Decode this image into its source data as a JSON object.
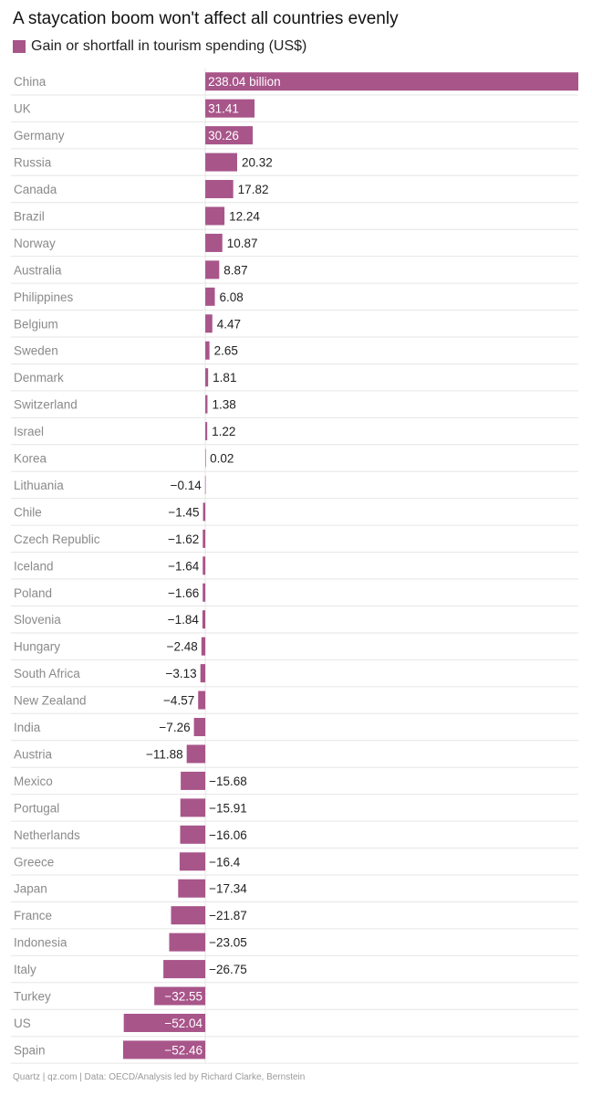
{
  "colors": {
    "bar": "#a8558a",
    "label_inside": "#ffffff",
    "label_outside": "#222222",
    "category_text": "#8a8a8a",
    "grid": "#e6e6e6"
  },
  "chart_data": {
    "type": "bar",
    "orientation": "horizontal",
    "title": "A staycation boom won't affect all countries evenly",
    "legend": "Gain or shortfall in tourism spending (US$)",
    "unit_suffix_first": " billion",
    "xlim": [
      -60,
      238.04
    ],
    "categories": [
      "China",
      "UK",
      "Germany",
      "Russia",
      "Canada",
      "Brazil",
      "Norway",
      "Australia",
      "Philippines",
      "Belgium",
      "Sweden",
      "Denmark",
      "Switzerland",
      "Israel",
      "Korea",
      "Lithuania",
      "Chile",
      "Czech Republic",
      "Iceland",
      "Poland",
      "Slovenia",
      "Hungary",
      "South Africa",
      "New Zealand",
      "India",
      "Austria",
      "Mexico",
      "Portugal",
      "Netherlands",
      "Greece",
      "Japan",
      "France",
      "Indonesia",
      "Italy",
      "Turkey",
      "US",
      "Spain"
    ],
    "values": [
      238.04,
      31.41,
      30.26,
      20.32,
      17.82,
      12.24,
      10.87,
      8.87,
      6.08,
      4.47,
      2.65,
      1.81,
      1.38,
      1.22,
      0.02,
      -0.14,
      -1.45,
      -1.62,
      -1.64,
      -1.66,
      -1.84,
      -2.48,
      -3.13,
      -4.57,
      -7.26,
      -11.88,
      -15.68,
      -15.91,
      -16.06,
      -16.4,
      -17.34,
      -21.87,
      -23.05,
      -26.75,
      -32.55,
      -52.04,
      -52.46
    ],
    "labels": [
      "238.04 billion",
      "31.41",
      "30.26",
      "20.32",
      "17.82",
      "12.24",
      "10.87",
      "8.87",
      "6.08",
      "4.47",
      "2.65",
      "1.81",
      "1.38",
      "1.22",
      "0.02",
      "−0.14",
      "−1.45",
      "−1.62",
      "−1.64",
      "−1.66",
      "−1.84",
      "−2.48",
      "−3.13",
      "−4.57",
      "−7.26",
      "−11.88",
      "−15.68",
      "−15.91",
      "−16.06",
      "−16.4",
      "−17.34",
      "−21.87",
      "−23.05",
      "−26.75",
      "−32.55",
      "−52.04",
      "−52.46"
    ],
    "label_inside": [
      true,
      true,
      true,
      false,
      false,
      false,
      false,
      false,
      false,
      false,
      false,
      false,
      false,
      false,
      false,
      false,
      false,
      false,
      false,
      false,
      false,
      false,
      false,
      false,
      false,
      false,
      false,
      false,
      false,
      false,
      false,
      false,
      false,
      false,
      true,
      true,
      true
    ]
  },
  "footer": "Quartz | qz.com | Data: OECD/Analysis led by Richard Clarke, Bernstein"
}
